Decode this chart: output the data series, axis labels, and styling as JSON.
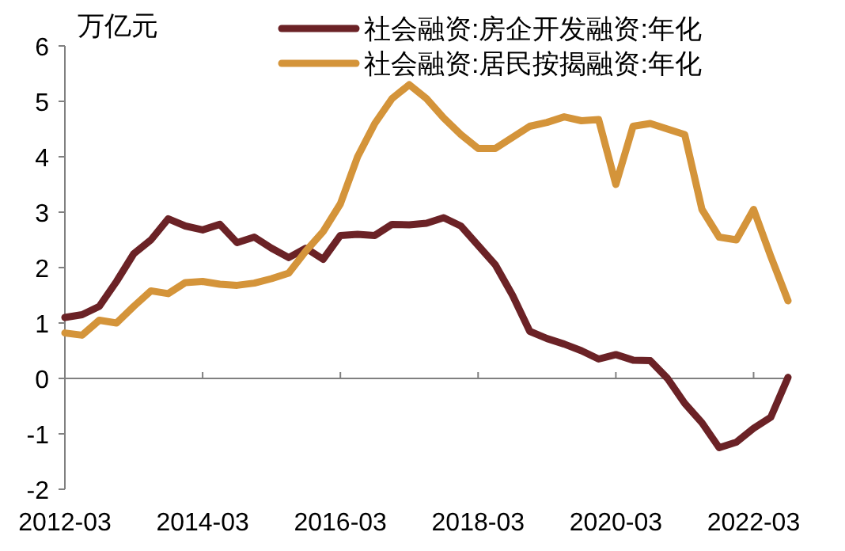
{
  "chart_data": {
    "type": "line",
    "ylabel": "万亿元",
    "x": [
      "2012-03",
      "2012-06",
      "2012-09",
      "2012-12",
      "2013-03",
      "2013-06",
      "2013-09",
      "2013-12",
      "2014-03",
      "2014-06",
      "2014-09",
      "2014-12",
      "2015-03",
      "2015-06",
      "2015-09",
      "2015-12",
      "2016-03",
      "2016-06",
      "2016-09",
      "2016-12",
      "2017-03",
      "2017-06",
      "2017-09",
      "2017-12",
      "2018-03",
      "2018-06",
      "2018-09",
      "2018-12",
      "2019-03",
      "2019-06",
      "2019-09",
      "2019-12",
      "2020-03",
      "2020-06",
      "2020-09",
      "2020-12",
      "2021-03",
      "2021-06",
      "2021-09",
      "2021-12",
      "2022-03",
      "2022-06",
      "2022-09"
    ],
    "series": [
      {
        "name": "社会融资:房企开发融资:年化",
        "color": "#6b2226",
        "values": [
          1.1,
          1.15,
          1.3,
          1.75,
          2.25,
          2.5,
          2.88,
          2.75,
          2.68,
          2.78,
          2.45,
          2.55,
          2.35,
          2.18,
          2.35,
          2.15,
          2.58,
          2.6,
          2.58,
          2.78,
          2.77,
          2.8,
          2.9,
          2.75,
          2.4,
          2.05,
          1.5,
          0.85,
          0.72,
          0.62,
          0.5,
          0.35,
          0.43,
          0.33,
          0.32,
          0.0,
          -0.45,
          -0.8,
          -1.25,
          -1.15,
          -0.9,
          -0.7,
          0.02
        ]
      },
      {
        "name": "社会融资:居民按揭融资:年化",
        "color": "#d4943a",
        "values": [
          0.82,
          0.78,
          1.05,
          1.0,
          1.3,
          1.58,
          1.53,
          1.73,
          1.75,
          1.7,
          1.68,
          1.72,
          1.8,
          1.9,
          2.3,
          2.65,
          3.15,
          4.0,
          4.6,
          5.05,
          5.3,
          5.05,
          4.7,
          4.4,
          4.15,
          4.15,
          4.35,
          4.55,
          4.62,
          4.72,
          4.65,
          4.67,
          3.5,
          4.55,
          4.6,
          4.5,
          4.4,
          3.05,
          2.55,
          2.5,
          3.05,
          2.2,
          1.4
        ]
      }
    ],
    "xlim": [
      "2012-03",
      "2022-09"
    ],
    "xticks": [
      "2012-03",
      "2014-03",
      "2016-03",
      "2018-03",
      "2020-03",
      "2022-03"
    ],
    "ylim": [
      -2,
      6
    ],
    "yticks": [
      -2,
      -1,
      0,
      1,
      2,
      3,
      4,
      5,
      6
    ],
    "legend": "top right",
    "marker": "none",
    "line_style": "solid"
  }
}
